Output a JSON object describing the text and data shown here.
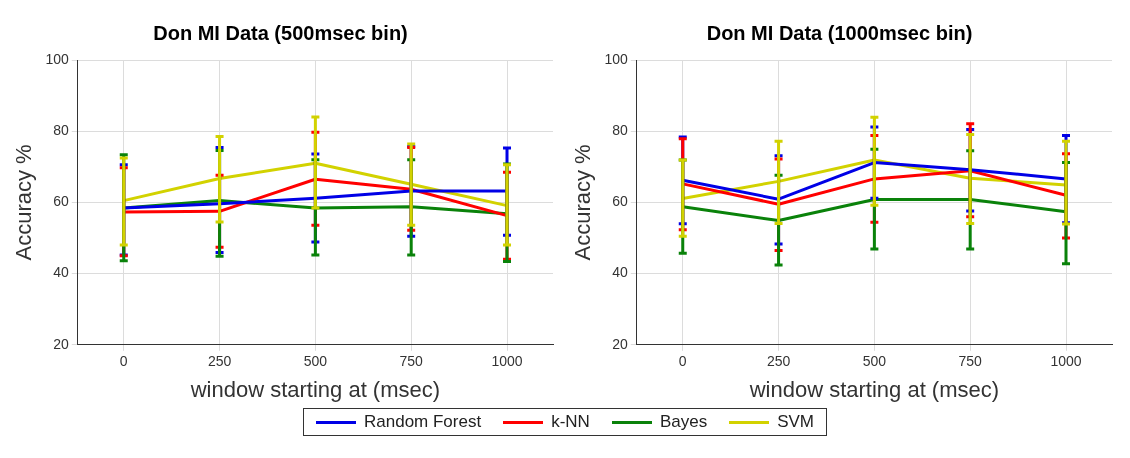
{
  "chart_data": [
    {
      "type": "line",
      "title": "Don MI Data (500msec bin)",
      "xlabel": "window starting at (msec)",
      "ylabel": "Accuracy %",
      "x": [
        0,
        250,
        500,
        750,
        1000
      ],
      "xlim": [
        -120,
        1120
      ],
      "xticks": [
        0,
        250,
        500,
        750,
        1000
      ],
      "ylim": [
        20,
        100
      ],
      "yticks": [
        20,
        40,
        60,
        80,
        100
      ],
      "grid": true,
      "legend": "bottom",
      "marker": "none",
      "line_style": "solid",
      "series": [
        {
          "name": "Random Forest",
          "color": "#0000e6",
          "values": [
            58.4,
            59.6,
            61.2,
            63.2,
            63.2
          ],
          "errors": [
            [
              45.2,
              70.6
            ],
            [
              45.9,
              75.4
            ],
            [
              48.9,
              73.6
            ],
            [
              50.5,
              75.7
            ],
            [
              50.8,
              75.3
            ]
          ]
        },
        {
          "name": "k-NN",
          "color": "#ff0000",
          "values": [
            57.3,
            57.5,
            66.5,
            63.7,
            56.3
          ],
          "errors": [
            [
              45,
              69.7
            ],
            [
              47.4,
              67.6
            ],
            [
              53.6,
              79.7
            ],
            [
              52.2,
              75.4
            ],
            [
              44,
              68.5
            ]
          ]
        },
        {
          "name": "Bayes",
          "color": "#0a820a",
          "values": [
            58.4,
            60.5,
            58.4,
            58.8,
            56.8
          ],
          "errors": [
            [
              43.6,
              73.4
            ],
            [
              44.9,
              74.6
            ],
            [
              45.2,
              72
            ],
            [
              45.2,
              72
            ],
            [
              43.4,
              70.8
            ]
          ]
        },
        {
          "name": "SVM",
          "color": "#d2d200",
          "values": [
            60.5,
            66.7,
            71,
            65.1,
            59.1
          ],
          "errors": [
            [
              48,
              72.5
            ],
            [
              54.5,
              78.5
            ],
            [
              58.4,
              84
            ],
            [
              53.6,
              76.4
            ],
            [
              48,
              70.6
            ]
          ]
        }
      ]
    },
    {
      "type": "line",
      "title": "Don MI Data (1000msec bin)",
      "xlabel": "window starting at (msec)",
      "ylabel": "Accuracy %",
      "x": [
        0,
        250,
        500,
        750,
        1000
      ],
      "xlim": [
        -120,
        1120
      ],
      "xticks": [
        0,
        250,
        500,
        750,
        1000
      ],
      "ylim": [
        20,
        100
      ],
      "yticks": [
        20,
        40,
        60,
        80,
        100
      ],
      "grid": true,
      "legend": "bottom",
      "marker": "none",
      "line_style": "solid",
      "series": [
        {
          "name": "Random Forest",
          "color": "#0000e6",
          "values": [
            66.2,
            60.9,
            71.2,
            69.2,
            66.6
          ],
          "errors": [
            [
              54,
              78.4
            ],
            [
              48.3,
              73.1
            ],
            [
              61.2,
              81.2
            ],
            [
              57.6,
              80.5
            ],
            [
              54.3,
              78.8
            ]
          ]
        },
        {
          "name": "k-NN",
          "color": "#ff0000",
          "values": [
            65.2,
            59.5,
            66.6,
            68.9,
            62
          ],
          "errors": [
            [
              52.3,
              77.9
            ],
            [
              46.5,
              72.2
            ],
            [
              54.4,
              78.8
            ],
            [
              56,
              82.1
            ],
            [
              50,
              73.7
            ]
          ]
        },
        {
          "name": "Bayes",
          "color": "#0a820a",
          "values": [
            58.8,
            54.9,
            60.8,
            60.8,
            57.4
          ],
          "errors": [
            [
              45.7,
              71.9
            ],
            [
              42.4,
              67.6
            ],
            [
              46.9,
              74.9
            ],
            [
              46.9,
              74.5
            ],
            [
              42.8,
              71.2
            ]
          ]
        },
        {
          "name": "SVM",
          "color": "#d2d200",
          "values": [
            61.1,
            65.9,
            71.9,
            66.8,
            64.9
          ],
          "errors": [
            [
              50.5,
              71.9
            ],
            [
              54.1,
              77.2
            ],
            [
              59.2,
              83.9
            ],
            [
              54.1,
              79.1
            ],
            [
              53.9,
              77.2
            ]
          ]
        }
      ]
    }
  ]
}
